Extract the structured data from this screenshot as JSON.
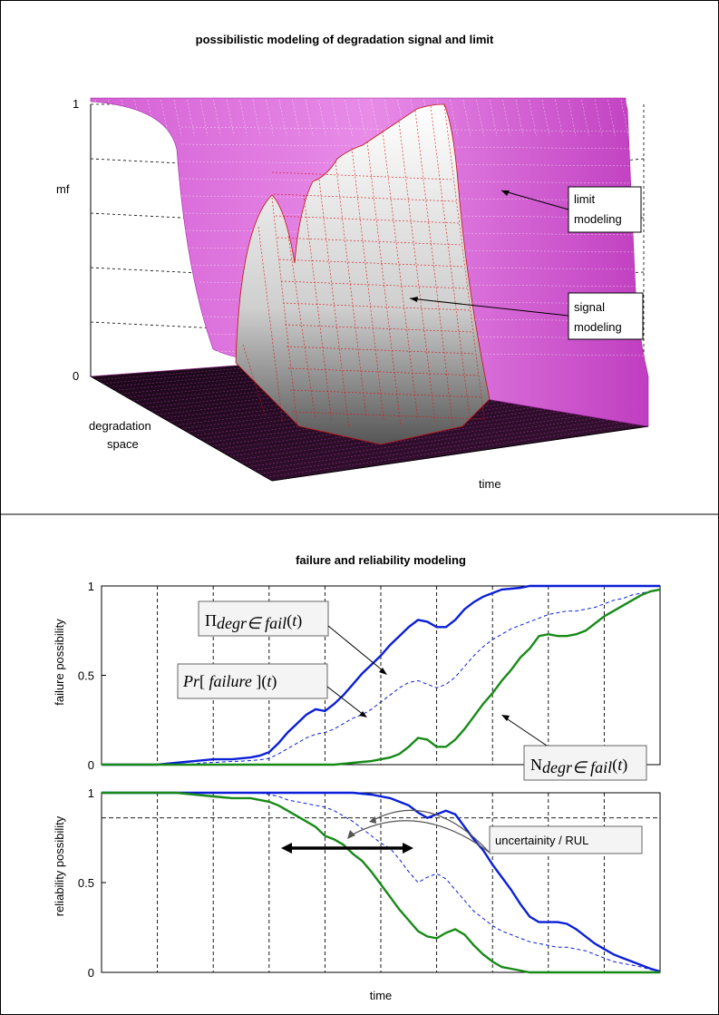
{
  "chart_data": [
    {
      "type": "surface",
      "title": "possibilistic modeling of degradation signal and limit",
      "zlabel": "mf",
      "ylabel": "degradation space",
      "xlabel": "time",
      "zticks": [
        "1",
        "0"
      ],
      "zlim": [
        0,
        1
      ],
      "annotations": [
        "limit modeling",
        "signal modeling"
      ],
      "surfaces": [
        {
          "name_as_annotated": "limit modeling",
          "colormap": "magenta",
          "mf_profile_along_degradation_space": [
            0,
            0,
            0,
            0.05,
            0.5,
            0.95,
            1,
            1,
            1
          ]
        },
        {
          "name_as_annotated": "signal modeling",
          "colormap": "gray-red",
          "peak_mf_along_time": [
            0,
            0,
            0.4,
            0.75,
            0.8,
            0.85,
            0.9,
            0.95,
            0.95,
            0.5,
            0,
            0
          ]
        }
      ]
    },
    {
      "type": "line",
      "title": "failure and reliability modeling",
      "ylabel": "failure possibility",
      "yticks": [
        "1",
        "0.5",
        "0"
      ],
      "ylim": [
        0,
        1
      ],
      "grid": "vertical dashed",
      "x": [
        0,
        1,
        2,
        3,
        4,
        5,
        6,
        7,
        8,
        9,
        10,
        11,
        12,
        13,
        14,
        15,
        16,
        17,
        18,
        19,
        20,
        21,
        22,
        23,
        24,
        25,
        26,
        27,
        28,
        29,
        30,
        31,
        32,
        33,
        34,
        35,
        36,
        37,
        38,
        39,
        40,
        41,
        42,
        43,
        44,
        45,
        46,
        47,
        48,
        49,
        50,
        51,
        52,
        53,
        54,
        55,
        56,
        57,
        58,
        59,
        60
      ],
      "series": [
        {
          "name": "Π degr∈fail (t)",
          "color": "#0b1fd6",
          "style": "solid",
          "values": [
            0,
            0,
            0,
            0,
            0,
            0,
            0,
            0.005,
            0.01,
            0.015,
            0.02,
            0.025,
            0.03,
            0.03,
            0.03,
            0.035,
            0.04,
            0.05,
            0.07,
            0.12,
            0.18,
            0.23,
            0.28,
            0.31,
            0.3,
            0.34,
            0.39,
            0.45,
            0.51,
            0.56,
            0.61,
            0.67,
            0.72,
            0.77,
            0.81,
            0.8,
            0.77,
            0.77,
            0.81,
            0.87,
            0.91,
            0.94,
            0.96,
            0.98,
            0.985,
            0.99,
            1,
            1,
            1,
            1,
            1,
            1,
            1,
            1,
            1,
            1,
            1,
            1,
            1,
            1,
            1
          ]
        },
        {
          "name": "Pr [ failure ](t)",
          "color": "#0b1fd6",
          "style": "dashed",
          "values": [
            0,
            0,
            0,
            0,
            0,
            0,
            0,
            0,
            0,
            0,
            0.005,
            0.01,
            0.012,
            0.015,
            0.018,
            0.02,
            0.023,
            0.027,
            0.035,
            0.06,
            0.09,
            0.12,
            0.15,
            0.17,
            0.18,
            0.2,
            0.23,
            0.26,
            0.28,
            0.31,
            0.35,
            0.39,
            0.43,
            0.46,
            0.47,
            0.45,
            0.43,
            0.45,
            0.49,
            0.55,
            0.61,
            0.66,
            0.7,
            0.73,
            0.76,
            0.78,
            0.8,
            0.82,
            0.84,
            0.85,
            0.86,
            0.86,
            0.87,
            0.88,
            0.9,
            0.92,
            0.93,
            0.95,
            0.96,
            0.97,
            0.98
          ]
        },
        {
          "name": "N degr∈fail (t)",
          "color": "#178a17",
          "style": "solid",
          "values": [
            0,
            0,
            0,
            0,
            0,
            0,
            0,
            0,
            0,
            0,
            0,
            0,
            0,
            0,
            0,
            0,
            0,
            0,
            0,
            0,
            0,
            0,
            0,
            0,
            0,
            0,
            0.005,
            0.01,
            0.015,
            0.02,
            0.03,
            0.04,
            0.06,
            0.1,
            0.15,
            0.14,
            0.1,
            0.1,
            0.14,
            0.2,
            0.27,
            0.34,
            0.4,
            0.47,
            0.53,
            0.6,
            0.65,
            0.72,
            0.73,
            0.72,
            0.72,
            0.73,
            0.75,
            0.79,
            0.83,
            0.86,
            0.89,
            0.92,
            0.95,
            0.97,
            0.98
          ]
        }
      ],
      "annotations": [
        "Π degr∈fail (t)",
        "Pr [ failure ](t)",
        "N degr∈fail (t)"
      ]
    },
    {
      "type": "line",
      "xlabel": "time",
      "ylabel": "reliability possibility",
      "yticks": [
        "1",
        "0.5",
        "0"
      ],
      "ylim": [
        0,
        1
      ],
      "grid": "vertical dashed",
      "threshold": 0.86,
      "x": [
        0,
        1,
        2,
        3,
        4,
        5,
        6,
        7,
        8,
        9,
        10,
        11,
        12,
        13,
        14,
        15,
        16,
        17,
        18,
        19,
        20,
        21,
        22,
        23,
        24,
        25,
        26,
        27,
        28,
        29,
        30,
        31,
        32,
        33,
        34,
        35,
        36,
        37,
        38,
        39,
        40,
        41,
        42,
        43,
        44,
        45,
        46,
        47,
        48,
        49,
        50,
        51,
        52,
        53,
        54,
        55,
        56,
        57,
        58,
        59,
        60
      ],
      "series": [
        {
          "name": "blue solid",
          "color": "#0b1fd6",
          "style": "solid",
          "values": [
            1,
            1,
            1,
            1,
            1,
            1,
            1,
            1,
            1,
            1,
            1,
            1,
            1,
            1,
            1,
            1,
            1,
            1,
            1,
            1,
            1,
            1,
            1,
            1,
            1,
            1,
            1,
            1,
            0.995,
            0.99,
            0.98,
            0.97,
            0.95,
            0.93,
            0.89,
            0.86,
            0.88,
            0.9,
            0.88,
            0.81,
            0.74,
            0.68,
            0.6,
            0.53,
            0.46,
            0.38,
            0.31,
            0.28,
            0.28,
            0.28,
            0.27,
            0.24,
            0.2,
            0.16,
            0.13,
            0.1,
            0.08,
            0.06,
            0.04,
            0.02,
            0.005
          ]
        },
        {
          "name": "blue dashed",
          "color": "#0b1fd6",
          "style": "dashed",
          "values": [
            1,
            1,
            1,
            1,
            1,
            1,
            1,
            1,
            1,
            1,
            1,
            1,
            1,
            1,
            1,
            1,
            1,
            1,
            0.99,
            0.98,
            0.96,
            0.95,
            0.94,
            0.93,
            0.92,
            0.9,
            0.87,
            0.84,
            0.8,
            0.76,
            0.72,
            0.69,
            0.63,
            0.56,
            0.5,
            0.53,
            0.55,
            0.52,
            0.46,
            0.4,
            0.34,
            0.3,
            0.26,
            0.23,
            0.21,
            0.19,
            0.17,
            0.16,
            0.15,
            0.14,
            0.14,
            0.13,
            0.12,
            0.1,
            0.08,
            0.06,
            0.05,
            0.04,
            0.03,
            0.015,
            0.005
          ]
        },
        {
          "name": "green solid",
          "color": "#178a17",
          "style": "solid",
          "values": [
            1,
            1,
            1,
            1,
            1,
            1,
            1,
            1,
            1,
            0.995,
            0.99,
            0.985,
            0.98,
            0.975,
            0.97,
            0.97,
            0.97,
            0.96,
            0.95,
            0.93,
            0.9,
            0.87,
            0.84,
            0.81,
            0.76,
            0.74,
            0.71,
            0.66,
            0.62,
            0.56,
            0.49,
            0.42,
            0.35,
            0.29,
            0.23,
            0.2,
            0.19,
            0.22,
            0.24,
            0.21,
            0.15,
            0.1,
            0.06,
            0.03,
            0.02,
            0.01,
            0,
            0,
            0,
            0,
            0,
            0,
            0,
            0,
            0,
            0,
            0,
            0,
            0,
            0,
            0
          ]
        }
      ],
      "annotations": [
        "uncertainity / RUL"
      ]
    }
  ]
}
